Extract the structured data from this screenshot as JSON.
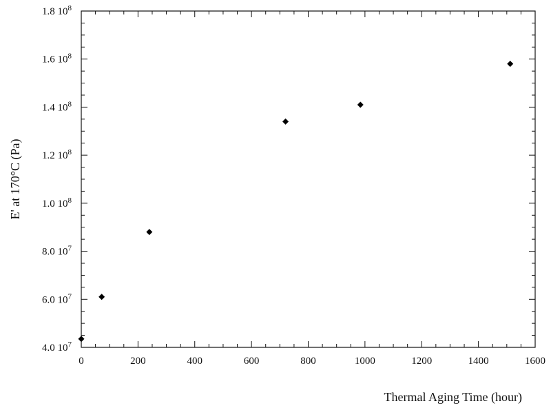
{
  "chart_data": {
    "type": "scatter",
    "xlabel": "Thermal Aging Time (hour)",
    "ylabel": "E' at 170°C (Pa)",
    "xlim": [
      0,
      1600
    ],
    "ylim": [
      40000000,
      180000000
    ],
    "x_ticks": [
      {
        "v": 0,
        "label": "0"
      },
      {
        "v": 200,
        "label": "200"
      },
      {
        "v": 400,
        "label": "400"
      },
      {
        "v": 600,
        "label": "600"
      },
      {
        "v": 800,
        "label": "800"
      },
      {
        "v": 1000,
        "label": "1000"
      },
      {
        "v": 1200,
        "label": "1200"
      },
      {
        "v": 1400,
        "label": "1400"
      },
      {
        "v": 1600,
        "label": "1600"
      }
    ],
    "y_ticks": [
      {
        "v": 40000000,
        "mant": "4.0 10",
        "exp": "7"
      },
      {
        "v": 60000000,
        "mant": "6.0 10",
        "exp": "7"
      },
      {
        "v": 80000000,
        "mant": "8.0 10",
        "exp": "7"
      },
      {
        "v": 100000000,
        "mant": "1.0 10",
        "exp": "8"
      },
      {
        "v": 120000000,
        "mant": "1.2 10",
        "exp": "8"
      },
      {
        "v": 140000000,
        "mant": "1.4 10",
        "exp": "8"
      },
      {
        "v": 160000000,
        "mant": "1.6 10",
        "exp": "8"
      },
      {
        "v": 180000000,
        "mant": "1.8 10",
        "exp": "8"
      }
    ],
    "series": [
      {
        "marker": "diamond",
        "color": "#000000",
        "points": [
          {
            "x": 0,
            "y": 43500000
          },
          {
            "x": 72,
            "y": 61000000
          },
          {
            "x": 240,
            "y": 88000000
          },
          {
            "x": 720,
            "y": 134000000
          },
          {
            "x": 984,
            "y": 141000000
          },
          {
            "x": 1512,
            "y": 158000000
          }
        ]
      }
    ],
    "grid": false,
    "legend": "none"
  }
}
